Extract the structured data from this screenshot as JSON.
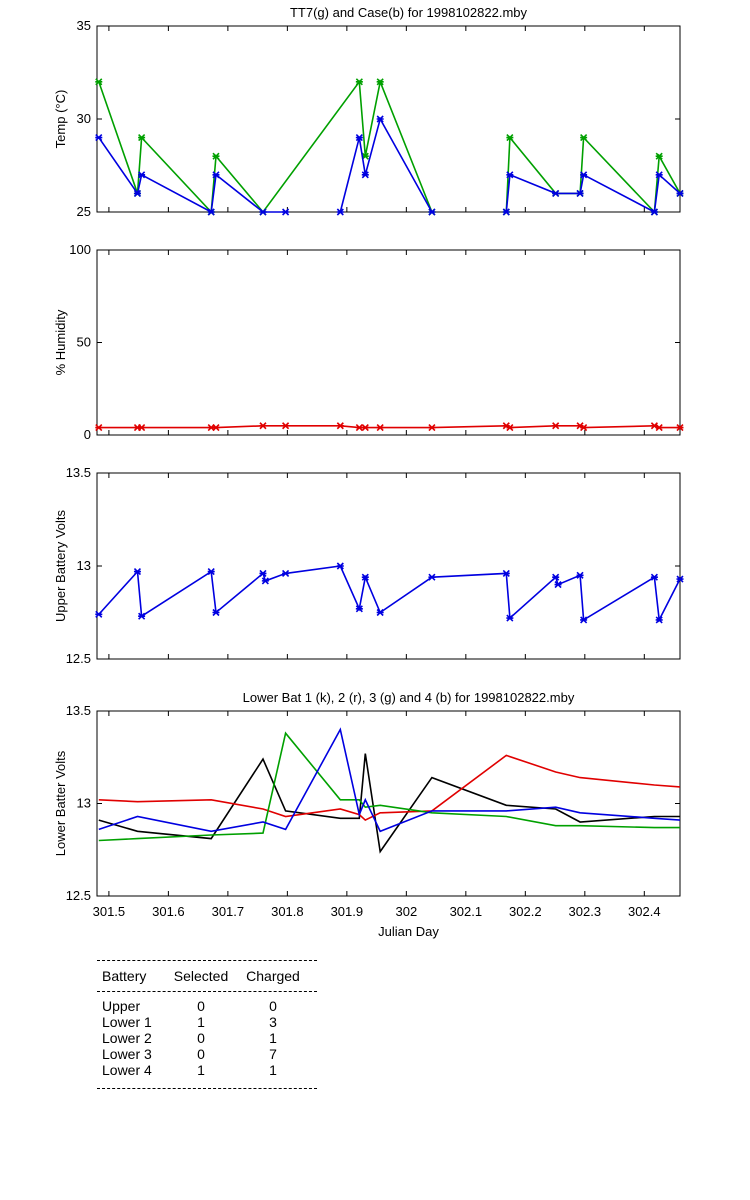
{
  "chart_data": [
    {
      "type": "line",
      "title": "TT7(g) and Case(b) for 1998102822.mby",
      "xlabel": "",
      "ylabel": "Temp  (°C)",
      "xlim": [
        301.48,
        302.46
      ],
      "ylim": [
        25,
        35
      ],
      "yticks": [
        "25",
        "30",
        "35"
      ],
      "grid": false,
      "series": [
        {
          "name": "TT7",
          "color": "#00a000",
          "marker": "*",
          "x": [
            301.483,
            301.548,
            301.555,
            301.672,
            301.68,
            301.759,
            301.921,
            301.931,
            301.956,
            302.043
          ],
          "y": [
            32,
            26,
            29,
            25,
            28,
            25,
            32,
            28,
            32,
            25
          ],
          "x2": [
            302.168,
            302.174,
            302.251,
            302.292,
            302.298,
            302.417,
            302.425,
            302.46
          ],
          "y2": [
            25,
            29,
            26,
            26,
            29,
            25,
            28,
            26
          ]
        },
        {
          "name": "Case",
          "color": "#0000e0",
          "marker": "*",
          "x": [
            301.483,
            301.548,
            301.555,
            301.672,
            301.68,
            301.759,
            301.797
          ],
          "y": [
            29,
            26,
            27,
            25,
            27,
            25,
            25
          ],
          "x2": [
            301.889,
            301.921,
            301.931,
            301.956,
            302.043
          ],
          "y2": [
            25,
            29,
            27,
            30,
            25
          ],
          "x3": [
            302.168,
            302.174,
            302.251,
            302.292,
            302.298,
            302.417,
            302.425,
            302.46
          ],
          "y3": [
            25,
            27,
            26,
            26,
            27,
            25,
            27,
            26
          ]
        }
      ]
    },
    {
      "type": "line",
      "title": "",
      "xlabel": "",
      "ylabel": "% Humidity",
      "xlim": [
        301.48,
        302.46
      ],
      "ylim": [
        0,
        100
      ],
      "yticks": [
        "0",
        "50",
        "100"
      ],
      "grid": false,
      "series": [
        {
          "name": "",
          "color": "#e00000",
          "marker": "*",
          "x": [
            301.483,
            301.548,
            301.555,
            301.672,
            301.68,
            301.759,
            301.797,
            301.889,
            301.921,
            301.931,
            301.956,
            302.043,
            302.168,
            302.174,
            302.251,
            302.292,
            302.298,
            302.417,
            302.425,
            302.46
          ],
          "y": [
            4,
            4,
            4,
            4,
            4,
            5,
            5,
            5,
            4,
            4,
            4,
            4,
            5,
            4,
            5,
            5,
            4,
            5,
            4,
            4
          ]
        }
      ]
    },
    {
      "type": "line",
      "title": "",
      "xlabel": "",
      "ylabel": "Upper Battery Volts",
      "xlim": [
        301.48,
        302.46
      ],
      "ylim": [
        12.5,
        13.5
      ],
      "yticks": [
        "12.5",
        "13",
        "13.5"
      ],
      "grid": false,
      "series": [
        {
          "name": "",
          "color": "#0000e0",
          "marker": "*",
          "x": [
            301.483,
            301.548,
            301.555,
            301.672,
            301.68,
            301.759,
            301.763,
            301.797,
            301.889,
            301.921,
            301.931,
            301.956,
            302.043,
            302.168,
            302.174,
            302.251,
            302.255,
            302.292,
            302.298,
            302.417,
            302.425,
            302.46
          ],
          "y": [
            12.74,
            12.97,
            12.73,
            12.97,
            12.75,
            12.96,
            12.92,
            12.96,
            13.0,
            12.77,
            12.94,
            12.75,
            12.94,
            12.96,
            12.72,
            12.94,
            12.9,
            12.95,
            12.71,
            12.94,
            12.71,
            12.93
          ]
        }
      ]
    },
    {
      "type": "line",
      "title": "Lower Bat 1 (k), 2 (r), 3 (g) and 4 (b) for 1998102822.mby",
      "xlabel": "Julian Day",
      "ylabel": "Lower Batter Volts",
      "xlim": [
        301.48,
        302.46
      ],
      "ylim": [
        12.5,
        13.5
      ],
      "yticks": [
        "12.5",
        "13",
        "13.5"
      ],
      "xticks": [
        "301.5",
        "301.6",
        "301.7",
        "301.8",
        "301.9",
        "302",
        "302.1",
        "302.2",
        "302.3",
        "302.4"
      ],
      "grid": false,
      "series": [
        {
          "name": "1",
          "color": "#000000",
          "x": [
            301.483,
            301.548,
            301.672,
            301.759,
            301.797,
            301.889,
            301.921,
            301.931,
            301.956,
            302.043,
            302.168,
            302.251,
            302.292,
            302.417,
            302.46
          ],
          "y": [
            12.91,
            12.85,
            12.81,
            13.24,
            12.96,
            12.92,
            12.92,
            13.27,
            12.74,
            13.14,
            12.99,
            12.97,
            12.9,
            12.93,
            12.93
          ]
        },
        {
          "name": "2",
          "color": "#e00000",
          "x": [
            301.483,
            301.548,
            301.672,
            301.759,
            301.797,
            301.889,
            301.921,
            301.931,
            301.956,
            302.043,
            302.168,
            302.251,
            302.292,
            302.417,
            302.46
          ],
          "y": [
            13.02,
            13.01,
            13.02,
            12.97,
            12.93,
            12.97,
            12.94,
            12.91,
            12.95,
            12.96,
            13.26,
            13.17,
            13.14,
            13.1,
            13.09
          ]
        },
        {
          "name": "3",
          "color": "#00a000",
          "x": [
            301.483,
            301.548,
            301.672,
            301.759,
            301.797,
            301.889,
            301.921,
            301.931,
            301.956,
            302.043,
            302.168,
            302.251,
            302.292,
            302.417,
            302.46
          ],
          "y": [
            12.8,
            12.81,
            12.83,
            12.84,
            13.38,
            13.02,
            13.02,
            12.98,
            12.99,
            12.95,
            12.93,
            12.88,
            12.88,
            12.87,
            12.87
          ]
        },
        {
          "name": "4",
          "color": "#0000e0",
          "x": [
            301.483,
            301.548,
            301.672,
            301.759,
            301.797,
            301.889,
            301.921,
            301.931,
            301.956,
            302.043,
            302.168,
            302.251,
            302.292,
            302.417,
            302.46
          ],
          "y": [
            12.86,
            12.93,
            12.85,
            12.9,
            12.86,
            13.4,
            12.94,
            13.02,
            12.85,
            12.96,
            12.96,
            12.98,
            12.95,
            12.92,
            12.91
          ]
        }
      ]
    }
  ],
  "table": {
    "headers": [
      "Battery",
      "Selected",
      "Charged"
    ],
    "rows": [
      [
        "Upper",
        "0",
        "0"
      ],
      [
        "Lower 1",
        "1",
        "3"
      ],
      [
        "Lower 2",
        "0",
        "1"
      ],
      [
        "Lower 3",
        "0",
        "7"
      ],
      [
        "Lower 4",
        "1",
        "1"
      ]
    ]
  }
}
